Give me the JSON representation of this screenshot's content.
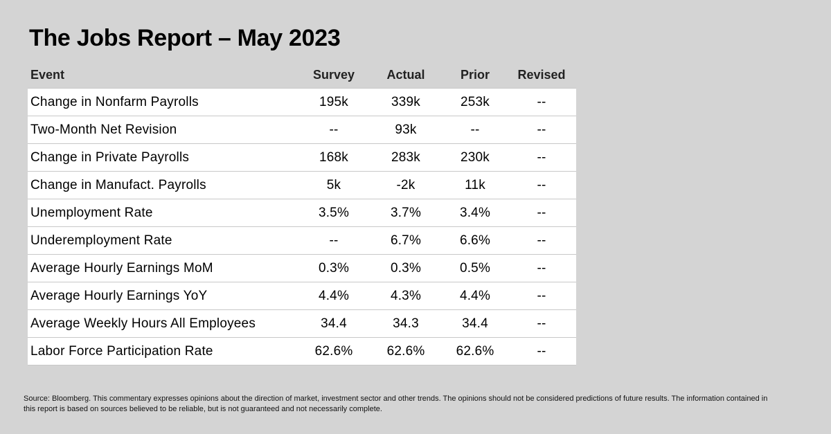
{
  "title": "The Jobs Report – May 2023",
  "chart_data": {
    "type": "table",
    "columns": [
      "Event",
      "Survey",
      "Actual",
      "Prior",
      "Revised"
    ],
    "rows": [
      [
        "Change in Nonfarm Payrolls",
        "195k",
        "339k",
        "253k",
        "--"
      ],
      [
        "Two-Month Net Revision",
        "--",
        "93k",
        "--",
        "--"
      ],
      [
        "Change in Private Payrolls",
        "168k",
        "283k",
        "230k",
        "--"
      ],
      [
        "Change in Manufact. Payrolls",
        "5k",
        "-2k",
        "11k",
        "--"
      ],
      [
        "Unemployment Rate",
        "3.5%",
        "3.7%",
        "3.4%",
        "--"
      ],
      [
        "Underemployment Rate",
        "--",
        "6.7%",
        "6.6%",
        "--"
      ],
      [
        "Average Hourly Earnings MoM",
        "0.3%",
        "0.3%",
        "0.5%",
        "--"
      ],
      [
        "Average Hourly Earnings YoY",
        "4.4%",
        "4.3%",
        "4.4%",
        "--"
      ],
      [
        "Average Weekly Hours All Employees",
        "34.4",
        "34.3",
        "34.4",
        "--"
      ],
      [
        "Labor Force Participation Rate",
        "62.6%",
        "62.6%",
        "62.6%",
        "--"
      ]
    ]
  },
  "footnote": "Source: Bloomberg. This commentary expresses opinions about the direction of market, investment sector and other trends. The opinions should not be considered predictions of future results. The information contained in this report is based on sources believed to be reliable, but is not guaranteed and not necessarily complete."
}
